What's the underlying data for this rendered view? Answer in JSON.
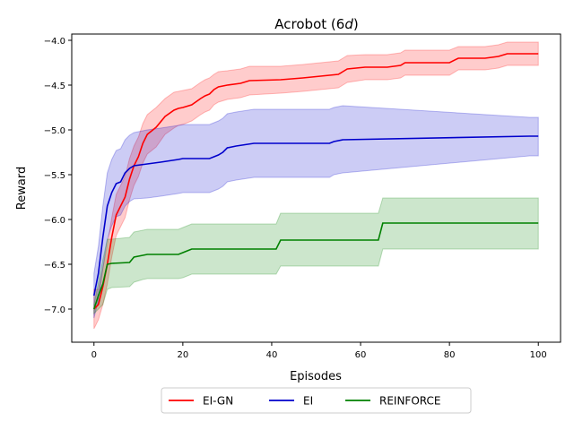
{
  "chart_data": {
    "type": "line",
    "title": "Acrobot (6d)",
    "xlabel": "Episodes",
    "ylabel": "Reward",
    "xlim": [
      -5,
      105
    ],
    "ylim": [
      -7.37,
      -3.93
    ],
    "xticks": [
      0,
      20,
      40,
      60,
      80,
      100
    ],
    "yticks": [
      -7.0,
      -6.5,
      -6.0,
      -5.5,
      -5.0,
      -4.5,
      -4.0
    ],
    "ytick_labels": [
      "−7.0",
      "−6.5",
      "−6.0",
      "−5.5",
      "−5.0",
      "−4.5",
      "−4.0"
    ],
    "xtick_labels": [
      "0",
      "20",
      "40",
      "60",
      "80",
      "100"
    ],
    "legend_position": "bottom-center, outside plot",
    "grid": false,
    "series": [
      {
        "name": "EI-GN",
        "color": "#ff0000",
        "x": [
          0,
          1,
          2,
          3,
          4,
          5,
          6,
          7,
          8,
          9,
          10,
          11,
          12,
          14,
          16,
          18,
          19,
          20,
          22,
          24,
          25,
          26,
          27,
          28,
          30,
          33,
          35,
          42,
          47,
          55,
          56,
          57,
          61,
          64,
          66,
          69,
          70,
          80,
          82,
          88,
          91,
          93,
          100
        ],
        "y": [
          -7.0,
          -6.95,
          -6.75,
          -6.5,
          -6.2,
          -5.95,
          -5.85,
          -5.75,
          -5.55,
          -5.4,
          -5.3,
          -5.15,
          -5.05,
          -4.97,
          -4.85,
          -4.78,
          -4.76,
          -4.75,
          -4.72,
          -4.65,
          -4.62,
          -4.6,
          -4.55,
          -4.52,
          -4.5,
          -4.48,
          -4.45,
          -4.44,
          -4.42,
          -4.38,
          -4.35,
          -4.32,
          -4.3,
          -4.3,
          -4.3,
          -4.28,
          -4.25,
          -4.25,
          -4.2,
          -4.2,
          -4.18,
          -4.15,
          -4.15
        ],
        "band": [
          [
            -7.22,
            -6.78
          ],
          [
            -7.12,
            -6.78
          ],
          [
            -6.95,
            -6.55
          ],
          [
            -6.72,
            -6.28
          ],
          [
            -6.42,
            -5.98
          ],
          [
            -6.18,
            -5.72
          ],
          [
            -6.08,
            -5.62
          ],
          [
            -5.98,
            -5.52
          ],
          [
            -5.78,
            -5.32
          ],
          [
            -5.62,
            -5.18
          ],
          [
            -5.52,
            -5.08
          ],
          [
            -5.37,
            -4.93
          ],
          [
            -5.27,
            -4.83
          ],
          [
            -5.19,
            -4.75
          ],
          [
            -5.05,
            -4.65
          ],
          [
            -4.98,
            -4.58
          ],
          [
            -4.95,
            -4.57
          ],
          [
            -4.94,
            -4.56
          ],
          [
            -4.9,
            -4.54
          ],
          [
            -4.83,
            -4.47
          ],
          [
            -4.8,
            -4.44
          ],
          [
            -4.78,
            -4.42
          ],
          [
            -4.72,
            -4.38
          ],
          [
            -4.69,
            -4.35
          ],
          [
            -4.66,
            -4.34
          ],
          [
            -4.64,
            -4.32
          ],
          [
            -4.61,
            -4.29
          ],
          [
            -4.59,
            -4.29
          ],
          [
            -4.57,
            -4.27
          ],
          [
            -4.53,
            -4.23
          ],
          [
            -4.5,
            -4.2
          ],
          [
            -4.47,
            -4.17
          ],
          [
            -4.44,
            -4.16
          ],
          [
            -4.44,
            -4.16
          ],
          [
            -4.44,
            -4.16
          ],
          [
            -4.42,
            -4.14
          ],
          [
            -4.39,
            -4.11
          ],
          [
            -4.39,
            -4.11
          ],
          [
            -4.33,
            -4.07
          ],
          [
            -4.33,
            -4.07
          ],
          [
            -4.31,
            -4.05
          ],
          [
            -4.28,
            -4.02
          ],
          [
            -4.28,
            -4.02
          ]
        ]
      },
      {
        "name": "EI",
        "color": "#0000cc",
        "x": [
          0,
          1,
          2,
          3,
          4,
          5,
          6,
          7,
          8,
          9,
          12,
          15,
          19,
          20,
          26,
          27,
          28,
          29,
          30,
          32,
          36,
          53,
          54,
          56,
          98,
          100
        ],
        "y": [
          -6.85,
          -6.6,
          -6.2,
          -5.85,
          -5.7,
          -5.6,
          -5.58,
          -5.48,
          -5.43,
          -5.4,
          -5.38,
          -5.36,
          -5.33,
          -5.32,
          -5.32,
          -5.3,
          -5.28,
          -5.25,
          -5.2,
          -5.18,
          -5.15,
          -5.15,
          -5.13,
          -5.11,
          -5.07,
          -5.07
        ],
        "band": [
          [
            -7.1,
            -6.6
          ],
          [
            -6.9,
            -6.3
          ],
          [
            -6.55,
            -5.85
          ],
          [
            -6.22,
            -5.48
          ],
          [
            -6.07,
            -5.33
          ],
          [
            -5.97,
            -5.23
          ],
          [
            -5.95,
            -5.21
          ],
          [
            -5.85,
            -5.11
          ],
          [
            -5.8,
            -5.06
          ],
          [
            -5.77,
            -5.03
          ],
          [
            -5.76,
            -5.0
          ],
          [
            -5.74,
            -4.98
          ],
          [
            -5.71,
            -4.95
          ],
          [
            -5.7,
            -4.94
          ],
          [
            -5.7,
            -4.94
          ],
          [
            -5.68,
            -4.92
          ],
          [
            -5.66,
            -4.9
          ],
          [
            -5.63,
            -4.87
          ],
          [
            -5.58,
            -4.82
          ],
          [
            -5.56,
            -4.8
          ],
          [
            -5.53,
            -4.77
          ],
          [
            -5.53,
            -4.77
          ],
          [
            -5.5,
            -4.75
          ],
          [
            -5.48,
            -4.73
          ],
          [
            -5.29,
            -4.86
          ],
          [
            -5.29,
            -4.86
          ]
        ]
      },
      {
        "name": "REINFORCE",
        "color": "#008000",
        "x": [
          0,
          1,
          2,
          3,
          4,
          8,
          9,
          11,
          12,
          19,
          20,
          21,
          22,
          41,
          42,
          64,
          65,
          100
        ],
        "y": [
          -7.0,
          -6.85,
          -6.72,
          -6.5,
          -6.49,
          -6.48,
          -6.42,
          -6.4,
          -6.39,
          -6.39,
          -6.37,
          -6.35,
          -6.33,
          -6.33,
          -6.23,
          -6.23,
          -6.04,
          -6.04
        ],
        "band": [
          [
            -7.05,
            -6.95
          ],
          [
            -7.0,
            -6.7
          ],
          [
            -6.95,
            -6.45
          ],
          [
            -6.78,
            -6.22
          ],
          [
            -6.76,
            -6.22
          ],
          [
            -6.75,
            -6.2
          ],
          [
            -6.7,
            -6.14
          ],
          [
            -6.67,
            -6.12
          ],
          [
            -6.66,
            -6.11
          ],
          [
            -6.66,
            -6.11
          ],
          [
            -6.65,
            -6.09
          ],
          [
            -6.63,
            -6.07
          ],
          [
            -6.61,
            -6.05
          ],
          [
            -6.61,
            -6.05
          ],
          [
            -6.52,
            -5.93
          ],
          [
            -6.52,
            -5.93
          ],
          [
            -6.33,
            -5.76
          ],
          [
            -6.33,
            -5.76
          ]
        ]
      }
    ]
  }
}
